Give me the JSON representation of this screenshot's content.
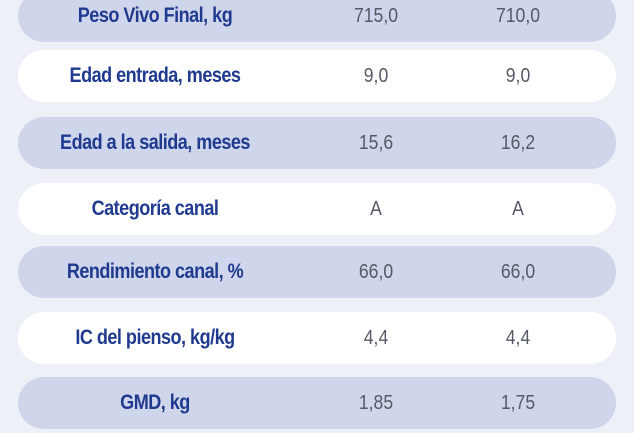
{
  "table": {
    "rows": [
      {
        "label": "Peso Vivo Final, kg",
        "col1": "715,0",
        "col2": "710,0"
      },
      {
        "label": "Edad entrada, meses",
        "col1": "9,0",
        "col2": "9,0"
      },
      {
        "label": "Edad a la salida, meses",
        "col1": "15,6",
        "col2": "16,2"
      },
      {
        "label": "Categoría canal",
        "col1": "A",
        "col2": "A"
      },
      {
        "label": "Rendimiento canal, %",
        "col1": "66,0",
        "col2": "66,0"
      },
      {
        "label": "IC del pienso, kg/kg",
        "col1": "4,4",
        "col2": "4,4"
      },
      {
        "label": "GMD, kg",
        "col1": "1,85",
        "col2": "1,75"
      }
    ]
  },
  "colors": {
    "background": "#eef0f8",
    "row_shaded": "#cfd5ea",
    "row_plain": "#ffffff",
    "label_text": "#1f3a8f",
    "value_text": "#555a66"
  }
}
